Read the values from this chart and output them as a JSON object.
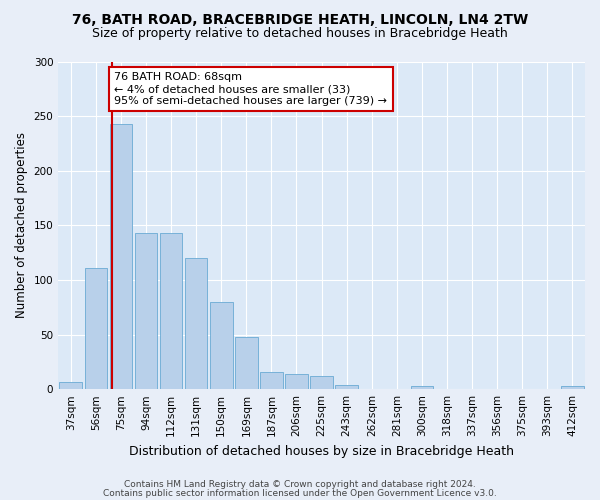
{
  "title1": "76, BATH ROAD, BRACEBRIDGE HEATH, LINCOLN, LN4 2TW",
  "title2": "Size of property relative to detached houses in Bracebridge Heath",
  "xlabel": "Distribution of detached houses by size in Bracebridge Heath",
  "ylabel": "Number of detached properties",
  "footer1": "Contains HM Land Registry data © Crown copyright and database right 2024.",
  "footer2": "Contains public sector information licensed under the Open Government Licence v3.0.",
  "categories": [
    "37sqm",
    "56sqm",
    "75sqm",
    "94sqm",
    "112sqm",
    "131sqm",
    "150sqm",
    "169sqm",
    "187sqm",
    "206sqm",
    "225sqm",
    "243sqm",
    "262sqm",
    "281sqm",
    "300sqm",
    "318sqm",
    "337sqm",
    "356sqm",
    "375sqm",
    "393sqm",
    "412sqm"
  ],
  "values": [
    7,
    111,
    243,
    143,
    143,
    120,
    80,
    48,
    16,
    14,
    12,
    4,
    0,
    0,
    3,
    0,
    0,
    0,
    0,
    0,
    3
  ],
  "bar_color": "#b8d0ea",
  "bar_edge_color": "#6aaad4",
  "annotation_text": "76 BATH ROAD: 68sqm\n← 4% of detached houses are smaller (33)\n95% of semi-detached houses are larger (739) →",
  "ylim": [
    0,
    300
  ],
  "yticks": [
    0,
    50,
    100,
    150,
    200,
    250,
    300
  ],
  "plot_bg_color": "#dce9f7",
  "fig_bg_color": "#e8eef8",
  "grid_color": "#ffffff",
  "title1_fontsize": 10,
  "title2_fontsize": 9,
  "xlabel_fontsize": 9,
  "ylabel_fontsize": 8.5,
  "tick_fontsize": 7.5,
  "footer_fontsize": 6.5,
  "ann_fontsize": 8
}
